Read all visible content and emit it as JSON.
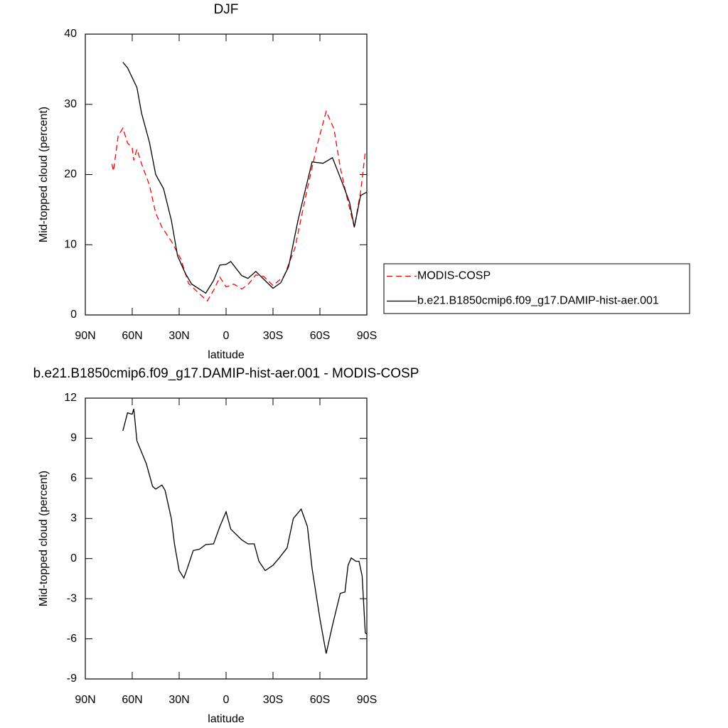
{
  "chart_data": [
    {
      "type": "line",
      "title": "DJF",
      "xlabel": "latitude",
      "ylabel": "Mid-topped cloud (percent)",
      "xlim": [
        90,
        -90
      ],
      "xticks": [
        {
          "value": 90,
          "label": "90N"
        },
        {
          "value": 60,
          "label": "60N"
        },
        {
          "value": 30,
          "label": "30N"
        },
        0,
        {
          "value": -30,
          "label": "30S"
        },
        {
          "value": -60,
          "label": "60S"
        },
        {
          "value": -90,
          "label": "90S"
        }
      ],
      "ylim": [
        0,
        40
      ],
      "yticks": [
        0,
        10,
        20,
        30,
        40
      ],
      "legend": "right",
      "series": [
        {
          "name": "MODIS-COSP",
          "color": "#ff0000",
          "dash": true,
          "x": [
            73,
            72,
            69,
            66,
            63,
            60,
            59,
            57,
            54,
            49,
            45,
            41,
            35,
            29,
            24,
            17,
            12,
            8,
            4,
            0,
            -5,
            -10,
            -14,
            -19,
            -24,
            -30,
            -37,
            -44,
            -51,
            -58,
            -64,
            -69,
            -73,
            -77,
            -82,
            -86,
            -89,
            -90
          ],
          "values": [
            21.5,
            20.5,
            25.5,
            26.6,
            24.5,
            23.8,
            22,
            23.6,
            21.5,
            18.5,
            14.5,
            12.5,
            10.5,
            8,
            4.5,
            3,
            2,
            3.5,
            5.4,
            4,
            4.4,
            3.7,
            4.3,
            5.7,
            5.5,
            4.2,
            5.5,
            9.5,
            17,
            24,
            29,
            26.5,
            21,
            17,
            12.5,
            17.5,
            23.2,
            23.5
          ]
        },
        {
          "name": "b.e21.B1850cmip6.f09_g17.DAMIP-hist-aer.001",
          "color": "#000000",
          "dash": false,
          "x": [
            66,
            63,
            57,
            54,
            49,
            45,
            40,
            35,
            31,
            26,
            22,
            13,
            8,
            4,
            0,
            -3,
            -10,
            -14,
            -19,
            -24,
            -30,
            -35,
            -40,
            -46,
            -55,
            -62,
            -68,
            -74,
            -79,
            -82,
            -86,
            -90
          ],
          "values": [
            36.0,
            35.2,
            32.4,
            28.7,
            24.6,
            20,
            18,
            13.5,
            8.4,
            5.9,
            4.4,
            3.1,
            4.9,
            7.1,
            7.2,
            7.6,
            5.6,
            5.2,
            6.2,
            5.1,
            3.8,
            4.6,
            6.9,
            13.5,
            21.8,
            21.6,
            22.4,
            19,
            16,
            12.5,
            17,
            17.5
          ]
        }
      ]
    },
    {
      "type": "line",
      "title": "b.e21.B1850cmip6.f09_g17.DAMIP-hist-aer.001 - MODIS-COSP",
      "xlabel": "latitude",
      "ylabel": "Mid-topped cloud (percent)",
      "xlim": [
        90,
        -90
      ],
      "xticks": [
        {
          "value": 90,
          "label": "90N"
        },
        {
          "value": 60,
          "label": "60N"
        },
        {
          "value": 30,
          "label": "30N"
        },
        0,
        {
          "value": -30,
          "label": "30S"
        },
        {
          "value": -60,
          "label": "60S"
        },
        {
          "value": -90,
          "label": "90S"
        }
      ],
      "ylim": [
        -9,
        12
      ],
      "yticks": [
        -9,
        -6,
        -3,
        0,
        3,
        6,
        9,
        12
      ],
      "series": [
        {
          "color": "#000000",
          "dash": false,
          "x": [
            66,
            63,
            60,
            59,
            57,
            51,
            47,
            45,
            41,
            39,
            35,
            33,
            30,
            27,
            25,
            21,
            17,
            13,
            8,
            4,
            0,
            -3,
            -10,
            -14,
            -18,
            -21,
            -25,
            -30,
            -34,
            -39,
            -43,
            -48,
            -52,
            -55,
            -60,
            -64,
            -68,
            -73,
            -76,
            -78,
            -80,
            -83,
            -85,
            -87,
            -89,
            -90
          ],
          "values": [
            9.55,
            10.9,
            10.8,
            11.2,
            8.8,
            7.1,
            5.4,
            5.2,
            5.5,
            5.1,
            3.0,
            1.1,
            -0.9,
            -1.45,
            -0.8,
            0.6,
            0.7,
            1.05,
            1.1,
            2.4,
            3.5,
            2.2,
            1.4,
            1.1,
            1.1,
            -0.2,
            -0.9,
            -0.5,
            0.05,
            0.8,
            3.0,
            3.7,
            2.4,
            -0.75,
            -4.5,
            -7.1,
            -5,
            -2.6,
            -2.5,
            -0.5,
            0.05,
            -0.2,
            -0.2,
            -1.3,
            -5.55,
            -5.65
          ]
        }
      ]
    }
  ]
}
